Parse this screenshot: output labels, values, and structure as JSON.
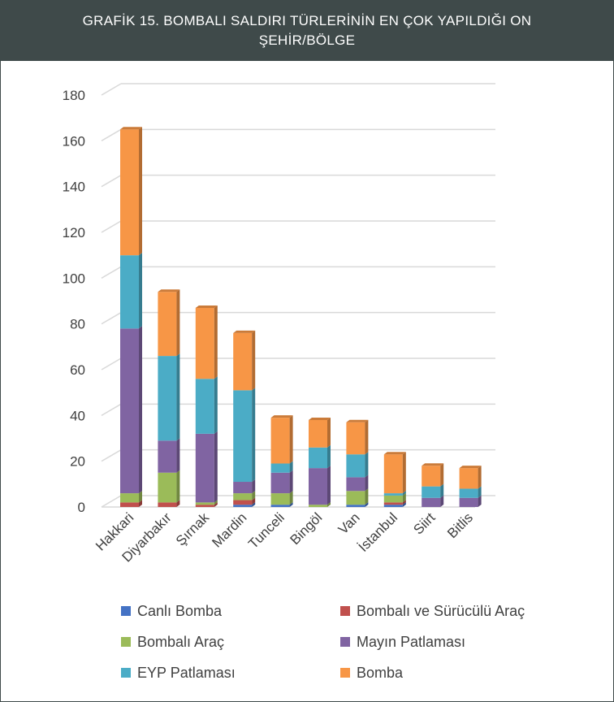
{
  "title": "GRAFİK 15. BOMBALI SALDIRI TÜRLERİNİN EN ÇOK YAPILDIĞI ON ŞEHİR/BÖLGE",
  "chart_data": {
    "type": "bar",
    "stacked": true,
    "categories": [
      "Hakkari",
      "Diyarbakır",
      "Şırnak",
      "Mardin",
      "Tunceli",
      "Bingöl",
      "Van",
      "İstanbul",
      "Siirt",
      "Bitlis"
    ],
    "series": [
      {
        "name": "Canlı Bomba",
        "color": "#4472c4",
        "values": [
          0,
          0,
          0,
          1,
          1,
          0,
          1,
          1,
          0,
          0
        ]
      },
      {
        "name": "Bombalı ve Sürücülü Araç",
        "color": "#c0504d",
        "values": [
          2,
          2,
          1,
          2,
          0,
          0,
          0,
          1,
          0,
          0
        ]
      },
      {
        "name": "Bombalı Araç",
        "color": "#9bbb59",
        "values": [
          4,
          13,
          1,
          3,
          5,
          1,
          6,
          3,
          0,
          0
        ]
      },
      {
        "name": "Mayın Patlaması",
        "color": "#8064a2",
        "values": [
          72,
          14,
          30,
          5,
          9,
          16,
          6,
          0,
          4,
          4
        ]
      },
      {
        "name": "EYP Patlaması",
        "color": "#4bacc6",
        "values": [
          32,
          37,
          24,
          40,
          4,
          9,
          10,
          1,
          5,
          4
        ]
      },
      {
        "name": "Bomba",
        "color": "#f79646",
        "values": [
          55,
          28,
          31,
          25,
          20,
          12,
          14,
          17,
          9,
          9
        ]
      }
    ],
    "ylim": [
      0,
      180
    ],
    "yticks": [
      0,
      20,
      40,
      60,
      80,
      100,
      120,
      140,
      160,
      180
    ],
    "grid": true,
    "legend_position": "bottom",
    "xlabel": "",
    "ylabel": ""
  }
}
